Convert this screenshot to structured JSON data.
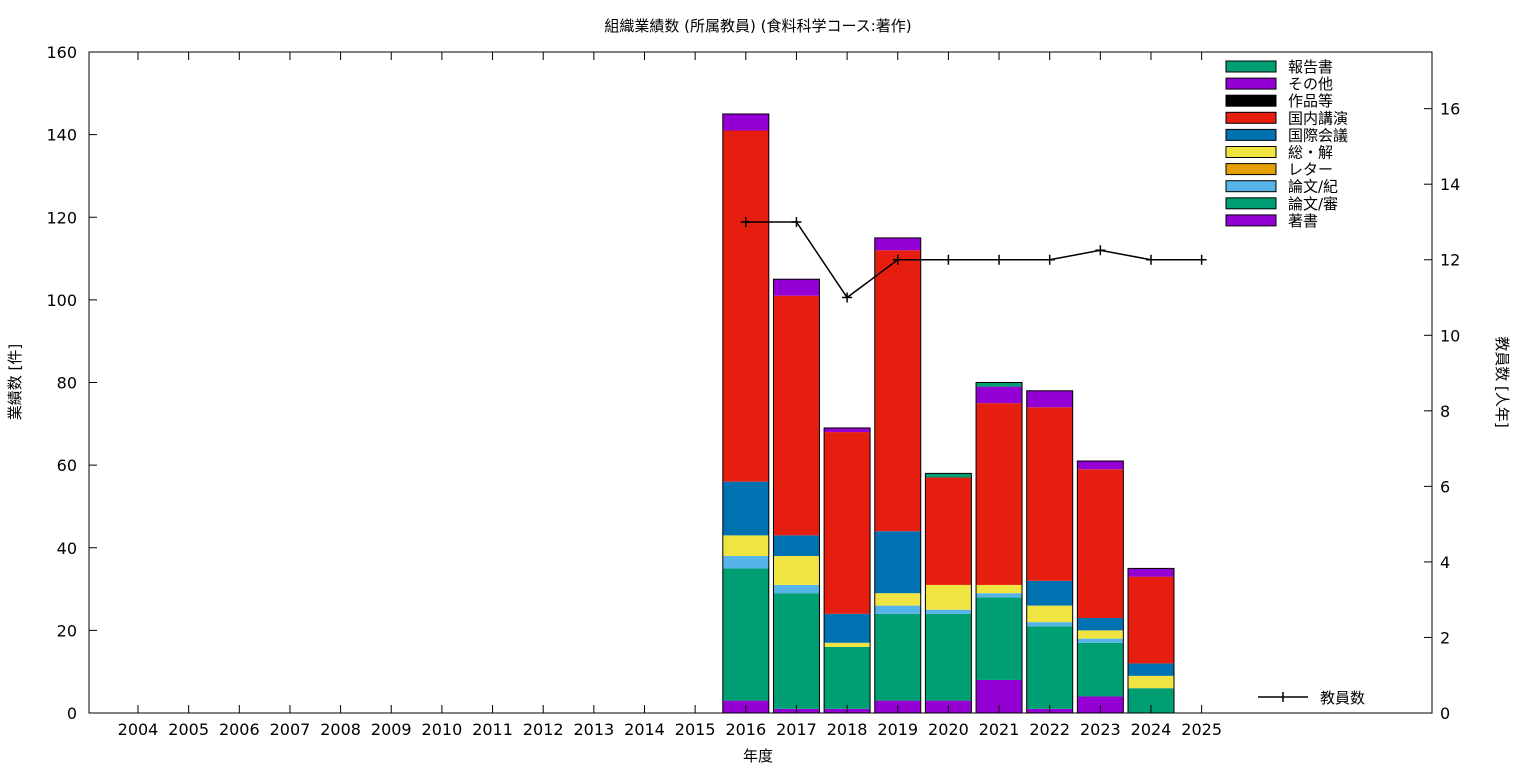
{
  "chart_data": {
    "type": "bar",
    "stacked": true,
    "title": "組織業績数 (所属教員) (食料科学コース:著作)",
    "xlabel": "年度",
    "ylabel": "業績数 [件]",
    "y2label": "教員数 [人年]",
    "ylim": [
      0,
      160
    ],
    "y2lim": [
      0,
      17.5
    ],
    "yticks": [
      0,
      20,
      40,
      60,
      80,
      100,
      120,
      140,
      160
    ],
    "y2ticks": [
      0,
      2,
      4,
      6,
      8,
      10,
      12,
      14,
      16
    ],
    "grid": false,
    "legend_position": "top-right",
    "categories": [
      "2004",
      "2005",
      "2006",
      "2007",
      "2008",
      "2009",
      "2010",
      "2011",
      "2012",
      "2013",
      "2014",
      "2015",
      "2016",
      "2017",
      "2018",
      "2019",
      "2020",
      "2021",
      "2022",
      "2023",
      "2024",
      "2025"
    ],
    "series": [
      {
        "name": "著書",
        "color": "#9400d3",
        "values": [
          0,
          0,
          0,
          0,
          0,
          0,
          0,
          0,
          0,
          0,
          0,
          0,
          3,
          1,
          1,
          3,
          3,
          8,
          1,
          4,
          0,
          0
        ]
      },
      {
        "name": "論文/審",
        "color": "#009e73",
        "values": [
          0,
          0,
          0,
          0,
          0,
          0,
          0,
          0,
          0,
          0,
          0,
          0,
          32,
          28,
          15,
          21,
          21,
          20,
          20,
          13,
          6,
          0
        ]
      },
      {
        "name": "論文/紀",
        "color": "#56b4e9",
        "values": [
          0,
          0,
          0,
          0,
          0,
          0,
          0,
          0,
          0,
          0,
          0,
          0,
          3,
          2,
          0,
          2,
          1,
          1,
          1,
          1,
          0,
          0
        ]
      },
      {
        "name": "レター",
        "color": "#e69f00",
        "values": [
          0,
          0,
          0,
          0,
          0,
          0,
          0,
          0,
          0,
          0,
          0,
          0,
          0,
          0,
          0,
          0,
          0,
          0,
          0,
          0,
          0,
          0
        ]
      },
      {
        "name": "総・解",
        "color": "#f0e442",
        "values": [
          0,
          0,
          0,
          0,
          0,
          0,
          0,
          0,
          0,
          0,
          0,
          0,
          5,
          7,
          1,
          3,
          6,
          2,
          4,
          2,
          3,
          0
        ]
      },
      {
        "name": "国際会議",
        "color": "#0072b2",
        "values": [
          0,
          0,
          0,
          0,
          0,
          0,
          0,
          0,
          0,
          0,
          0,
          0,
          13,
          5,
          7,
          15,
          0,
          0,
          6,
          3,
          3,
          0
        ]
      },
      {
        "name": "国内講演",
        "color": "#e51e10",
        "values": [
          0,
          0,
          0,
          0,
          0,
          0,
          0,
          0,
          0,
          0,
          0,
          0,
          85,
          58,
          44,
          68,
          26,
          44,
          42,
          36,
          21,
          0
        ]
      },
      {
        "name": "作品等",
        "color": "#000000",
        "values": [
          0,
          0,
          0,
          0,
          0,
          0,
          0,
          0,
          0,
          0,
          0,
          0,
          0,
          0,
          0,
          0,
          0,
          0,
          0,
          0,
          0,
          0
        ]
      },
      {
        "name": "その他",
        "color": "#9400d3",
        "values": [
          0,
          0,
          0,
          0,
          0,
          0,
          0,
          0,
          0,
          0,
          0,
          0,
          4,
          4,
          1,
          3,
          0,
          4,
          4,
          2,
          2,
          0
        ]
      },
      {
        "name": "報告書",
        "color": "#009e73",
        "values": [
          0,
          0,
          0,
          0,
          0,
          0,
          0,
          0,
          0,
          0,
          0,
          0,
          0,
          0,
          0,
          0,
          1,
          1,
          0,
          0,
          0,
          0
        ]
      }
    ],
    "line_series": {
      "name": "教員数",
      "axis": "y2",
      "color": "#000000",
      "x": [
        "2016",
        "2017",
        "2018",
        "2019",
        "2020",
        "2021",
        "2022",
        "2023",
        "2024",
        "2025"
      ],
      "values": [
        13,
        13,
        11,
        12,
        12,
        12,
        12,
        12.25,
        12,
        12
      ]
    },
    "legend_order": [
      "報告書",
      "その他",
      "作品等",
      "国内講演",
      "国際会議",
      "総・解",
      "レター",
      "論文/紀",
      "論文/審",
      "著書"
    ]
  }
}
